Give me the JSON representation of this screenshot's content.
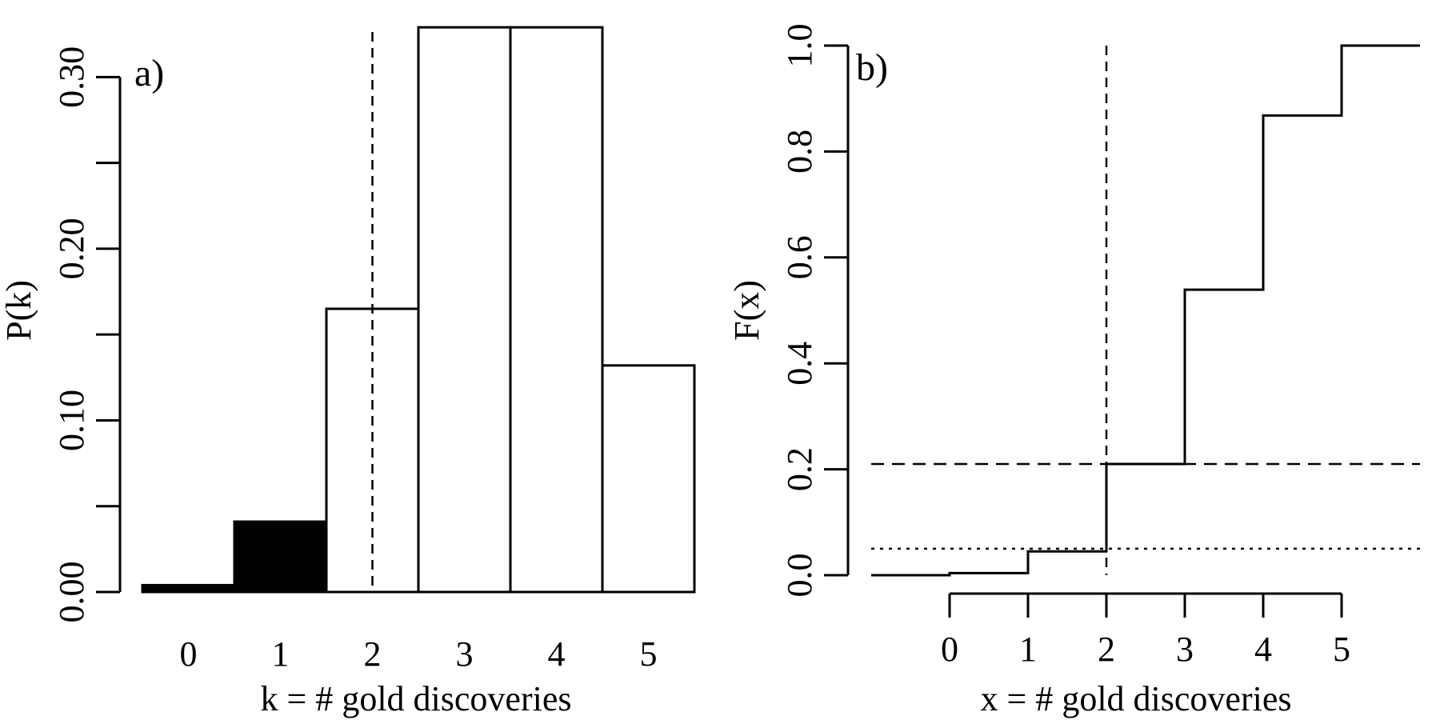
{
  "chart_data": [
    {
      "type": "bar",
      "panel_label": "a)",
      "xlabel": "k = # gold discoveries",
      "ylabel": "P(k)",
      "categories": [
        "0",
        "1",
        "2",
        "3",
        "4",
        "5"
      ],
      "values": [
        0.004,
        0.041,
        0.165,
        0.329,
        0.329,
        0.132
      ],
      "filled_categories": [
        "0",
        "1"
      ],
      "ylim": [
        0,
        0.33
      ],
      "yticks": [
        0.0,
        0.05,
        0.1,
        0.15,
        0.2,
        0.25,
        0.3
      ],
      "ytick_labels": [
        "0.00",
        "",
        "0.10",
        "",
        "0.20",
        "",
        "0.30"
      ],
      "reference_line": {
        "x": 2,
        "style": "dashed"
      }
    },
    {
      "type": "line",
      "panel_label": "b)",
      "xlabel": "x = # gold discoveries",
      "ylabel": "F(x)",
      "x_ticks": [
        0,
        1,
        2,
        3,
        4,
        5
      ],
      "step_x": [
        -1,
        0,
        1,
        2,
        3,
        4,
        5,
        6
      ],
      "step_y": [
        0.0,
        0.004,
        0.045,
        0.21,
        0.539,
        0.868,
        1.0,
        1.0
      ],
      "ylim": [
        0,
        1
      ],
      "yticks": [
        0.0,
        0.2,
        0.4,
        0.6,
        0.8,
        1.0
      ],
      "ytick_labels": [
        "0.0",
        "0.2",
        "0.4",
        "0.6",
        "0.8",
        "1.0"
      ],
      "reference_lines": [
        {
          "orientation": "vertical",
          "x": 2,
          "style": "dashed"
        },
        {
          "orientation": "horizontal",
          "y": 0.21,
          "style": "dashed"
        },
        {
          "orientation": "horizontal",
          "y": 0.05,
          "style": "dotted"
        }
      ]
    }
  ]
}
